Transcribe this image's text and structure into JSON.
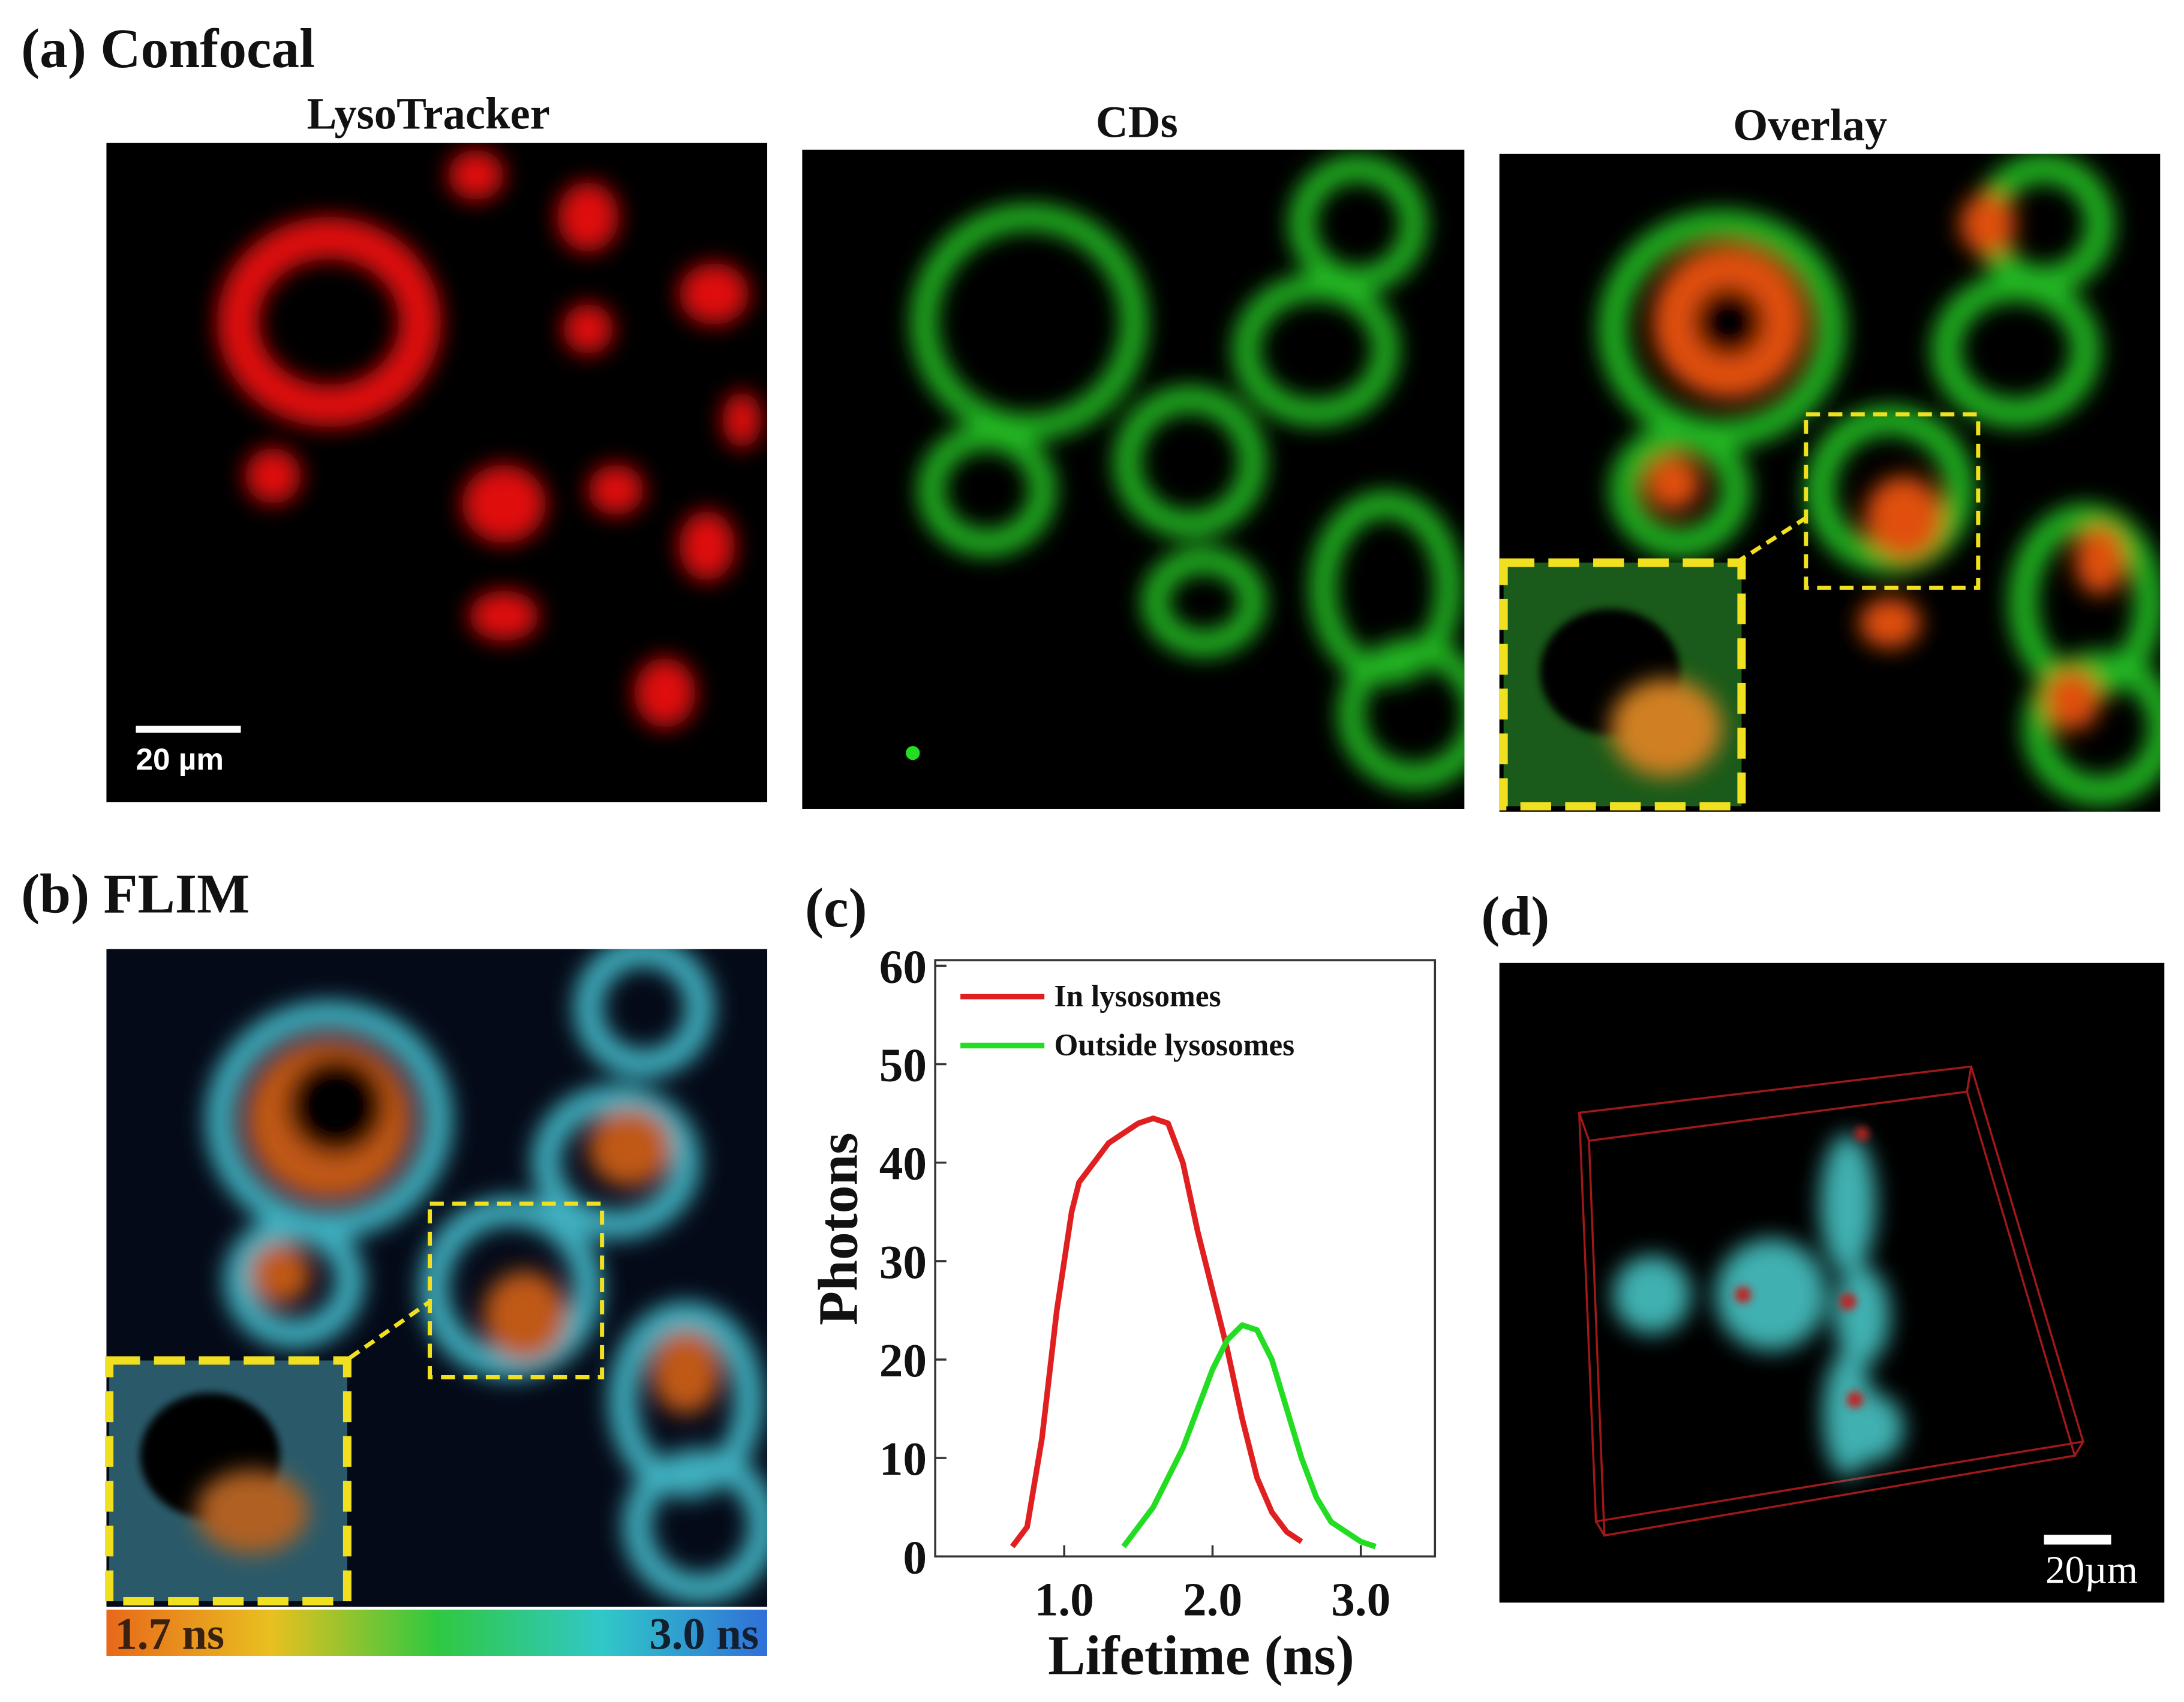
{
  "panels": {
    "a": {
      "label": "(a) Confocal",
      "images": [
        "LysoTracker",
        "CDs",
        "Overlay"
      ],
      "scale_bar": "20 µm"
    },
    "b": {
      "label": "(b) FLIM",
      "colorbar": [
        "1.7 ns",
        "3.0 ns"
      ]
    },
    "d": {
      "label": "(d)",
      "scale_bar": "20µm"
    }
  },
  "chart_data": {
    "type": "line",
    "panel_label": "(c)",
    "x_label": "Lifetime (ns)",
    "y_label": "Photons",
    "xlim": [
      0.13,
      3.5
    ],
    "ylim": [
      0,
      60
    ],
    "xticks": [
      {
        "value": 1,
        "label": "1.0"
      },
      {
        "value": 2,
        "label": "2.0"
      },
      {
        "value": 3,
        "label": "3.0"
      }
    ],
    "yticks": [
      0,
      10,
      20,
      30,
      40,
      50,
      60
    ],
    "series": [
      {
        "name": "In lysosomes",
        "color": "#e02020",
        "x": [
          0.65,
          0.75,
          0.85,
          0.95,
          1.05,
          1.1,
          1.2,
          1.3,
          1.4,
          1.5,
          1.6,
          1.7,
          1.8,
          1.9,
          2.0,
          2.1,
          2.2,
          2.3,
          2.4,
          2.5,
          2.6
        ],
        "values": [
          1,
          3,
          12,
          25,
          35,
          38,
          40,
          42,
          43,
          44,
          44.5,
          44,
          40,
          33,
          27,
          21,
          14,
          8,
          4.5,
          2.5,
          1.5
        ]
      },
      {
        "name": "Outside lysosomes",
        "color": "#22dd22",
        "x": [
          1.4,
          1.5,
          1.6,
          1.7,
          1.8,
          1.9,
          2.0,
          2.1,
          2.2,
          2.3,
          2.4,
          2.5,
          2.6,
          2.7,
          2.8,
          2.9,
          3.0,
          3.1
        ],
        "values": [
          1,
          3,
          5,
          8,
          11,
          15,
          19,
          22,
          23.5,
          23,
          20,
          15,
          10,
          6,
          3.5,
          2.5,
          1.5,
          1
        ]
      }
    ]
  }
}
